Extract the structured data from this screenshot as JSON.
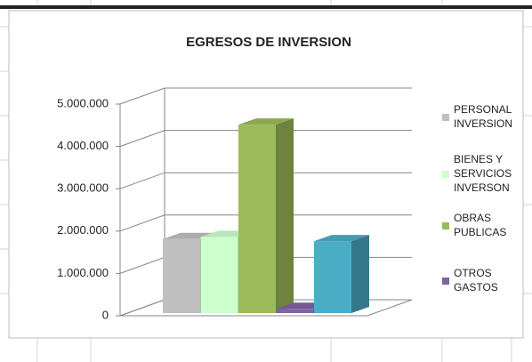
{
  "chart_data": {
    "type": "bar3d",
    "title": "EGRESOS DE INVERSION",
    "series": [
      {
        "name": "PERSONAL\nINVERSION",
        "color": "#bfbfbf",
        "values": [
          1750000
        ]
      },
      {
        "name": "BIENES Y\nSERVICIOS\nINVERSON",
        "color": "#ccffcc",
        "values": [
          1800000
        ]
      },
      {
        "name": "OBRAS\nPUBLICAS",
        "color": "#9bbb59",
        "values": [
          4450000
        ]
      },
      {
        "name": "OTROS\nGASTOS",
        "color": "#8064a2",
        "values": [
          100000
        ]
      },
      {
        "name": null,
        "color": "#4bacc6",
        "values": [
          1700000
        ]
      }
    ],
    "ylim": [
      0,
      5000000
    ],
    "yticks": [
      0,
      {
        "value": 1000000,
        "label": "1.000.000"
      },
      {
        "value": 2000000,
        "label": "2.000.000"
      },
      {
        "value": 3000000,
        "label": "3.000.000"
      },
      {
        "value": 4000000,
        "label": "4.000.000"
      },
      {
        "value": 5000000,
        "label": "5.000.000"
      }
    ],
    "grid": true,
    "legend": "right"
  }
}
